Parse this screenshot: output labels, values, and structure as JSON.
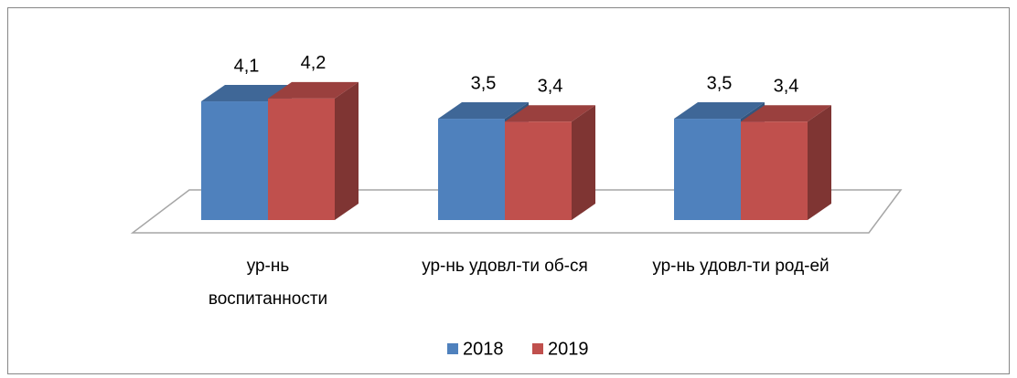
{
  "chart_data": {
    "type": "bar3d",
    "categories": [
      "ур-нь воспитанности",
      "ур-нь удовл-ти об-ся",
      "ур-нь удовл-ти род-ей"
    ],
    "series": [
      {
        "name": "2018",
        "color": "#4f81bd",
        "values": [
          4.1,
          3.5,
          3.5
        ],
        "value_labels": [
          "4,1",
          "3,5",
          "3,5"
        ]
      },
      {
        "name": "2019",
        "color": "#c0504d",
        "values": [
          4.2,
          3.4,
          3.4
        ],
        "value_labels": [
          "4,2",
          "3,4",
          "3,4"
        ]
      }
    ],
    "legend": "bottom"
  }
}
